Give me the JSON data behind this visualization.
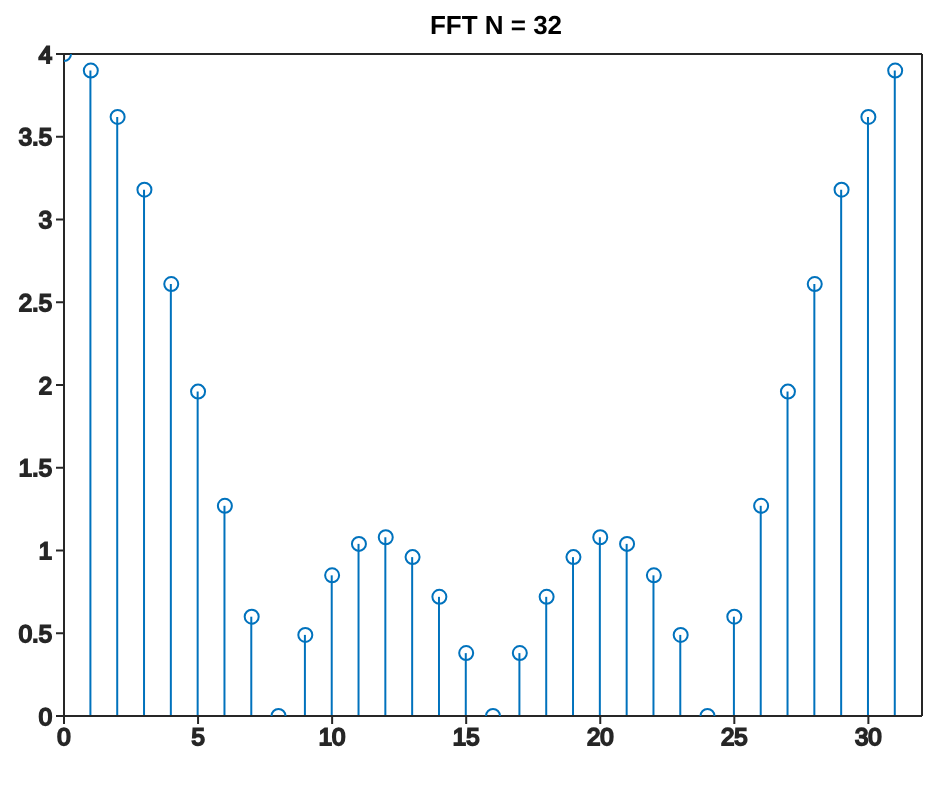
{
  "chart_data": {
    "type": "lollipop",
    "title": "FFT N = 32",
    "x": [
      0,
      1,
      2,
      3,
      4,
      5,
      6,
      7,
      8,
      9,
      10,
      11,
      12,
      13,
      14,
      15,
      16,
      17,
      18,
      19,
      20,
      21,
      22,
      23,
      24,
      25,
      26,
      27,
      28,
      29,
      30,
      31
    ],
    "values": [
      4,
      3.9,
      3.62,
      3.18,
      2.61,
      1.96,
      1.27,
      0.6,
      0,
      0.49,
      0.85,
      1.04,
      1.08,
      0.96,
      0.72,
      0.38,
      0,
      0.38,
      0.72,
      0.96,
      1.08,
      1.04,
      0.85,
      0.49,
      0,
      0.6,
      1.27,
      1.96,
      2.61,
      3.18,
      3.62,
      3.9
    ],
    "color": "#0072bd",
    "marker": "circle",
    "xlim": [
      0,
      32
    ],
    "xticks": [
      0,
      5,
      10,
      15,
      20,
      25,
      30
    ],
    "ylim": [
      0,
      4
    ],
    "yticks": [
      0,
      0.5,
      1,
      1.5,
      2,
      2.5,
      3,
      3.5,
      4
    ]
  }
}
